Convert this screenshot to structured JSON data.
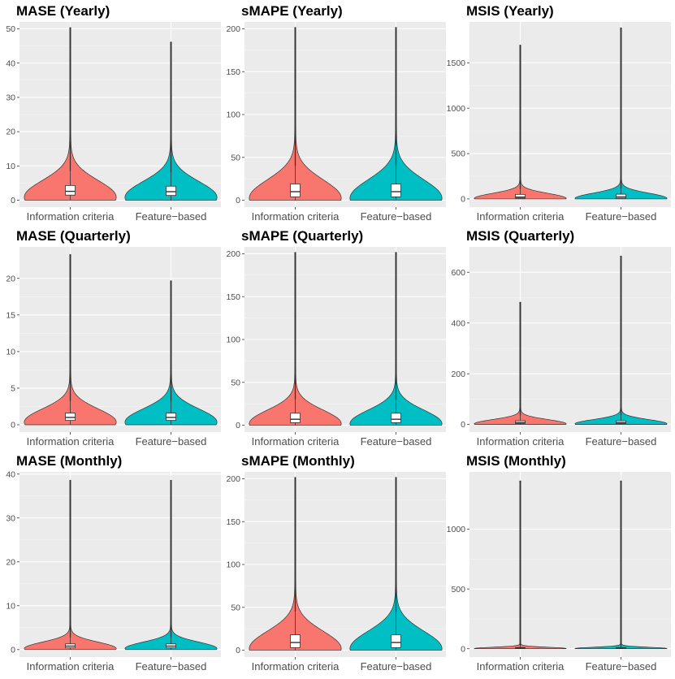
{
  "chart_data": [
    {
      "type": "violin",
      "title": "MASE (Yearly)",
      "categories": [
        "Information criteria",
        "Feature−based"
      ],
      "colors": [
        "#F8766D",
        "#00BFC4"
      ],
      "ylim": [
        -2,
        52
      ],
      "yticks": [
        0,
        10,
        20,
        30,
        40,
        50
      ],
      "ytick_labels": [
        "0",
        "10",
        "20",
        "30",
        "40",
        "50"
      ],
      "series": [
        {
          "name": "Information criteria",
          "median": 2.6,
          "q1": 1.5,
          "q3": 4.3,
          "max": 50.2,
          "whisker_high": 8.5
        },
        {
          "name": "Feature−based",
          "median": 2.5,
          "q1": 1.4,
          "q3": 4.1,
          "max": 46.0,
          "whisker_high": 8.1
        }
      ]
    },
    {
      "type": "violin",
      "title": "sMAPE (Yearly)",
      "categories": [
        "Information criteria",
        "Feature−based"
      ],
      "colors": [
        "#F8766D",
        "#00BFC4"
      ],
      "ylim": [
        -8,
        208
      ],
      "yticks": [
        0,
        50,
        100,
        150,
        200
      ],
      "ytick_labels": [
        "0",
        "50",
        "100",
        "150",
        "200"
      ],
      "series": [
        {
          "name": "Information criteria",
          "median": 10,
          "q1": 4,
          "q3": 19,
          "max": 201,
          "whisker_high": 40
        },
        {
          "name": "Feature−based",
          "median": 10,
          "q1": 4,
          "q3": 19,
          "max": 201,
          "whisker_high": 40
        }
      ]
    },
    {
      "type": "violin",
      "title": "MSIS (Yearly)",
      "categories": [
        "Information criteria",
        "Feature−based"
      ],
      "colors": [
        "#F8766D",
        "#00BFC4"
      ],
      "ylim": [
        -90,
        1950
      ],
      "yticks": [
        0,
        500,
        1000,
        1500
      ],
      "ytick_labels": [
        "0",
        "500",
        "1000",
        "1500"
      ],
      "series": [
        {
          "name": "Information criteria",
          "median": 20,
          "q1": 8,
          "q3": 50,
          "max": 1690,
          "whisker_high": 110
        },
        {
          "name": "Feature−based",
          "median": 22,
          "q1": 8,
          "q3": 52,
          "max": 1880,
          "whisker_high": 115
        }
      ]
    },
    {
      "type": "violin",
      "title": "MASE (Quarterly)",
      "categories": [
        "Information criteria",
        "Feature−based"
      ],
      "colors": [
        "#F8766D",
        "#00BFC4"
      ],
      "ylim": [
        -1,
        24.3
      ],
      "yticks": [
        0,
        5,
        10,
        15,
        20
      ],
      "ytick_labels": [
        "0",
        "5",
        "10",
        "15",
        "20"
      ],
      "series": [
        {
          "name": "Information criteria",
          "median": 1.0,
          "q1": 0.6,
          "q3": 1.6,
          "max": 23.2,
          "whisker_high": 3.2
        },
        {
          "name": "Feature−based",
          "median": 1.0,
          "q1": 0.6,
          "q3": 1.6,
          "max": 19.6,
          "whisker_high": 3.2
        }
      ]
    },
    {
      "type": "violin",
      "title": "sMAPE (Quarterly)",
      "categories": [
        "Information criteria",
        "Feature−based"
      ],
      "colors": [
        "#F8766D",
        "#00BFC4"
      ],
      "ylim": [
        -8,
        208
      ],
      "yticks": [
        0,
        50,
        100,
        150,
        200
      ],
      "ytick_labels": [
        "0",
        "50",
        "100",
        "150",
        "200"
      ],
      "series": [
        {
          "name": "Information criteria",
          "median": 7,
          "q1": 3,
          "q3": 14,
          "max": 201,
          "whisker_high": 30
        },
        {
          "name": "Feature−based",
          "median": 7,
          "q1": 3,
          "q3": 14,
          "max": 201,
          "whisker_high": 30
        }
      ]
    },
    {
      "type": "violin",
      "title": "MSIS (Quarterly)",
      "categories": [
        "Information criteria",
        "Feature−based"
      ],
      "colors": [
        "#F8766D",
        "#00BFC4"
      ],
      "ylim": [
        -30,
        700
      ],
      "yticks": [
        0,
        200,
        400,
        600
      ],
      "ytick_labels": [
        "0",
        "200",
        "400",
        "600"
      ],
      "series": [
        {
          "name": "Information criteria",
          "median": 8,
          "q1": 4,
          "q3": 15,
          "max": 480,
          "whisker_high": 35
        },
        {
          "name": "Feature−based",
          "median": 8,
          "q1": 4,
          "q3": 15,
          "max": 662,
          "whisker_high": 35
        }
      ]
    },
    {
      "type": "violin",
      "title": "MASE (Monthly)",
      "categories": [
        "Information criteria",
        "Feature−based"
      ],
      "colors": [
        "#F8766D",
        "#00BFC4"
      ],
      "ylim": [
        -1.7,
        40.5
      ],
      "yticks": [
        0,
        10,
        20,
        30,
        40
      ],
      "ytick_labels": [
        "0",
        "10",
        "20",
        "30",
        "40"
      ],
      "series": [
        {
          "name": "Information criteria",
          "median": 0.8,
          "q1": 0.4,
          "q3": 1.3,
          "max": 38.5,
          "whisker_high": 2.8
        },
        {
          "name": "Feature−based",
          "median": 0.8,
          "q1": 0.4,
          "q3": 1.3,
          "max": 38.5,
          "whisker_high": 2.8
        }
      ]
    },
    {
      "type": "violin",
      "title": "sMAPE (Monthly)",
      "categories": [
        "Information criteria",
        "Feature−based"
      ],
      "colors": [
        "#F8766D",
        "#00BFC4"
      ],
      "ylim": [
        -8,
        208
      ],
      "yticks": [
        0,
        50,
        100,
        150,
        200
      ],
      "ytick_labels": [
        "0",
        "50",
        "100",
        "150",
        "200"
      ],
      "series": [
        {
          "name": "Information criteria",
          "median": 9,
          "q1": 3,
          "q3": 18,
          "max": 201,
          "whisker_high": 45
        },
        {
          "name": "Feature−based",
          "median": 9,
          "q1": 3,
          "q3": 18,
          "max": 201,
          "whisker_high": 45
        }
      ]
    },
    {
      "type": "violin",
      "title": "MSIS (Monthly)",
      "categories": [
        "Information criteria",
        "Feature−based"
      ],
      "colors": [
        "#F8766D",
        "#00BFC4"
      ],
      "ylim": [
        -70,
        1480
      ],
      "yticks": [
        0,
        500,
        1000
      ],
      "ytick_labels": [
        "0",
        "500",
        "1000"
      ],
      "series": [
        {
          "name": "Information criteria",
          "median": 5,
          "q1": 2,
          "q3": 10,
          "max": 1400,
          "whisker_high": 25
        },
        {
          "name": "Feature−based",
          "median": 5,
          "q1": 2,
          "q3": 10,
          "max": 1400,
          "whisker_high": 25
        }
      ]
    }
  ]
}
